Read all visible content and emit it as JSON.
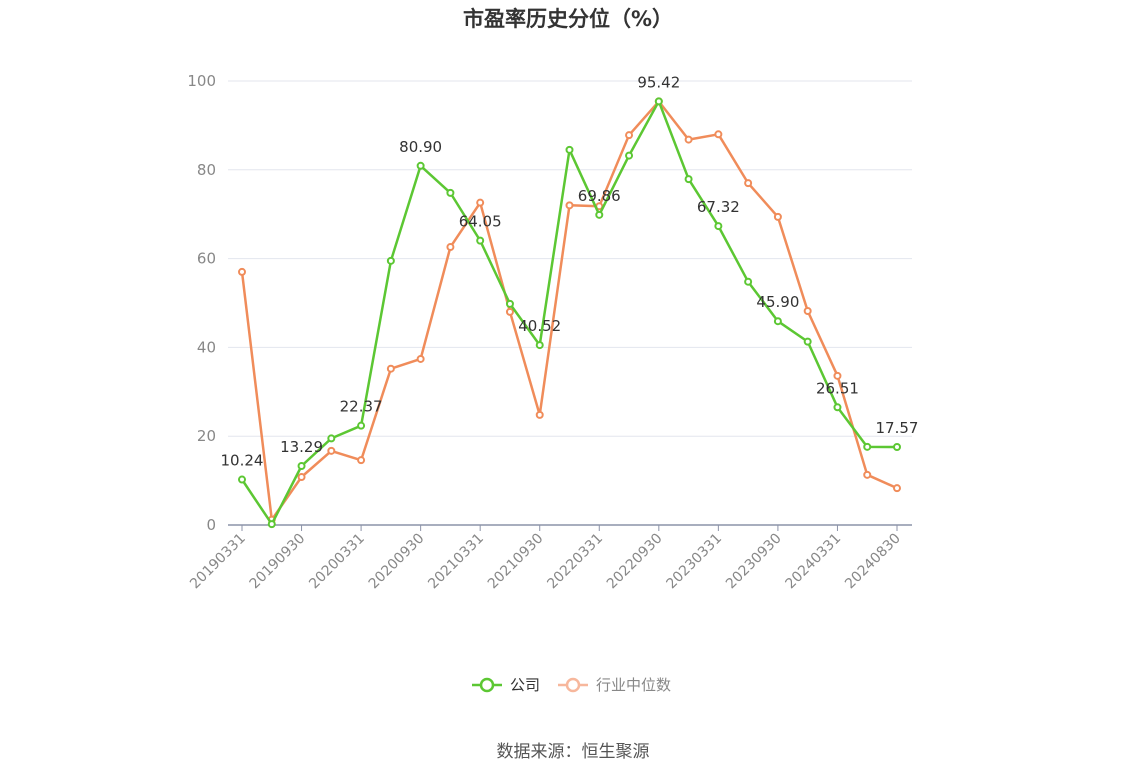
{
  "chart_data": {
    "type": "line",
    "title": "市盈率历史分位（%）",
    "ylim": [
      0,
      100
    ],
    "yticks": [
      0,
      20,
      40,
      60,
      80,
      100
    ],
    "x": [
      "20190331",
      "20190630",
      "20190930",
      "20191231",
      "20200331",
      "20200630",
      "20200930",
      "20201231",
      "20210331",
      "20210630",
      "20210930",
      "20211231",
      "20220331",
      "20220630",
      "20220930",
      "20221231",
      "20230331",
      "20230630",
      "20230930",
      "20231231",
      "20240331",
      "20240630",
      "20240830"
    ],
    "xtick_labels": [
      "20190331",
      "20190930",
      "20200331",
      "20200930",
      "20210331",
      "20210930",
      "20220331",
      "20220930",
      "20230331",
      "20230930",
      "20240331",
      "20240830"
    ],
    "series": [
      {
        "name": "公司",
        "color": "#5cc733",
        "values": [
          10.24,
          0.2,
          13.29,
          19.5,
          22.37,
          59.5,
          80.9,
          74.8,
          64.05,
          49.8,
          40.52,
          84.5,
          69.86,
          83.2,
          95.42,
          77.9,
          67.32,
          54.8,
          45.9,
          41.3,
          26.51,
          17.6,
          17.57
        ],
        "labels": {
          "0": "10.24",
          "2": "13.29",
          "4": "22.37",
          "6": "80.90",
          "8": "64.05",
          "10": "40.52",
          "12": "69.86",
          "14": "95.42",
          "16": "67.32",
          "18": "45.90",
          "20": "26.51",
          "22": "17.57"
        }
      },
      {
        "name": "行业中位数",
        "color": "#f08c5a",
        "values": [
          57.0,
          1.2,
          10.8,
          16.7,
          14.6,
          35.2,
          37.4,
          62.6,
          72.6,
          48.0,
          24.8,
          72.0,
          71.8,
          87.8,
          95.4,
          86.8,
          88.0,
          77.0,
          69.4,
          48.2,
          33.6,
          11.3,
          8.3
        ]
      }
    ],
    "legend": "bottom-center"
  },
  "source": "数据来源：恒生聚源"
}
